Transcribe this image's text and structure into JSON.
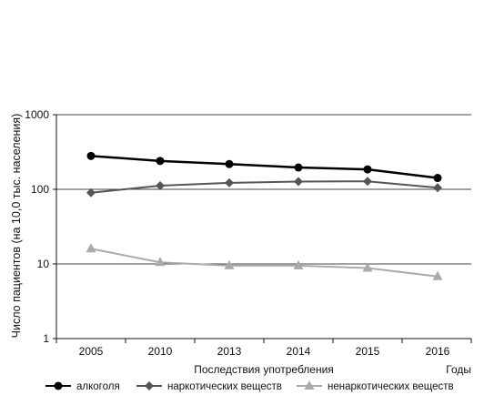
{
  "chart_data": {
    "type": "line",
    "ylabel": "Число пациентов (на 10,0 тыс. населения)",
    "xlabel": "Последствия употребления",
    "xunit": "Годы",
    "yscale": "log",
    "ylim": [
      1,
      1000
    ],
    "yticks": [
      "1",
      "10",
      "100",
      "1000"
    ],
    "grid": "horizontal",
    "legend_position": "bottom",
    "categories": [
      "2005",
      "2010",
      "2013",
      "2014",
      "2015",
      "2016"
    ],
    "series": [
      {
        "name": "алкоголя",
        "marker": "circle",
        "color": "#000000",
        "values": [
          280,
          240,
          218,
          196,
          185,
          142
        ]
      },
      {
        "name": "наркотических веществ",
        "marker": "diamond",
        "color": "#555555",
        "values": [
          90,
          112,
          122,
          127,
          128,
          105
        ]
      },
      {
        "name": "ненаркотических веществ",
        "marker": "triangle",
        "color": "#aaaaaa",
        "values": [
          16,
          10.5,
          9.5,
          9.5,
          8.8,
          6.8
        ]
      }
    ]
  }
}
